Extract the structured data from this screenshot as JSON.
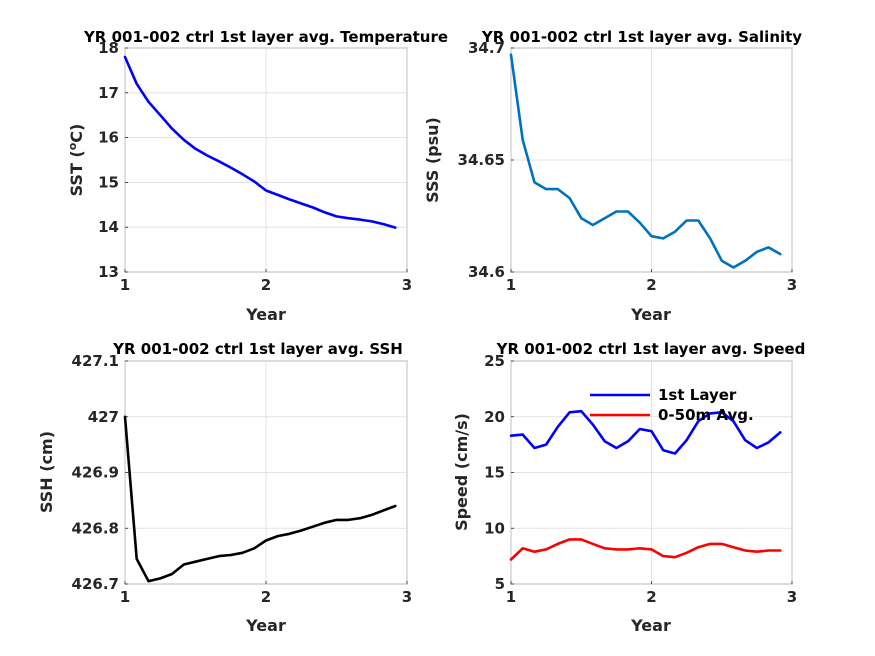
{
  "chart_data": [
    {
      "type": "line",
      "title": "YR 001-002 ctrl 1st layer avg. Temperature",
      "xlabel": "Year",
      "ylabel": "SST (",
      "ylabel_sup": "o",
      "ylabel_end": "C)",
      "xlim": [
        1,
        3
      ],
      "ylim": [
        13,
        18
      ],
      "xticks": [
        1,
        2,
        3
      ],
      "yticks": [
        13,
        14,
        15,
        16,
        17,
        18
      ],
      "grid": true,
      "series": [
        {
          "color": "#0000ff",
          "x": [
            1.0,
            1.083,
            1.167,
            1.25,
            1.333,
            1.417,
            1.5,
            1.583,
            1.667,
            1.75,
            1.833,
            1.917,
            2.0,
            2.083,
            2.167,
            2.25,
            2.333,
            2.417,
            2.5,
            2.583,
            2.667,
            2.75,
            2.833,
            2.917
          ],
          "values": [
            17.8,
            17.2,
            16.8,
            16.5,
            16.2,
            15.95,
            15.75,
            15.6,
            15.47,
            15.33,
            15.18,
            15.02,
            14.82,
            14.72,
            14.62,
            14.53,
            14.44,
            14.33,
            14.24,
            14.2,
            14.17,
            14.13,
            14.07,
            13.99
          ]
        }
      ]
    },
    {
      "type": "line",
      "title": "YR 001-002 ctrl 1st layer avg. Salinity",
      "xlabel": "Year",
      "ylabel": "SSS (psu)",
      "xlim": [
        1,
        3
      ],
      "ylim": [
        34.6,
        34.7
      ],
      "xticks": [
        1,
        2,
        3
      ],
      "yticks": [
        34.6,
        34.65,
        34.7
      ],
      "grid": true,
      "series": [
        {
          "color": "#0072bd",
          "x": [
            1.0,
            1.083,
            1.167,
            1.25,
            1.333,
            1.417,
            1.5,
            1.583,
            1.667,
            1.75,
            1.833,
            1.917,
            2.0,
            2.083,
            2.167,
            2.25,
            2.333,
            2.417,
            2.5,
            2.583,
            2.667,
            2.75,
            2.833,
            2.917
          ],
          "values": [
            34.697,
            34.659,
            34.64,
            34.637,
            34.637,
            34.633,
            34.624,
            34.621,
            34.624,
            34.627,
            34.627,
            34.622,
            34.616,
            34.615,
            34.618,
            34.623,
            34.623,
            34.615,
            34.605,
            34.602,
            34.605,
            34.609,
            34.611,
            34.608
          ]
        }
      ]
    },
    {
      "type": "line",
      "title": "YR 001-002 ctrl 1st layer avg. SSH",
      "xlabel": "Year",
      "ylabel": "SSH (cm)",
      "xlim": [
        1,
        3
      ],
      "ylim": [
        426.7,
        427.1
      ],
      "xticks": [
        1,
        2,
        3
      ],
      "yticks": [
        426.7,
        426.8,
        426.9,
        427,
        427.1
      ],
      "grid": true,
      "series": [
        {
          "color": "#000000",
          "x": [
            1.0,
            1.083,
            1.167,
            1.25,
            1.333,
            1.417,
            1.5,
            1.583,
            1.667,
            1.75,
            1.833,
            1.917,
            2.0,
            2.083,
            2.167,
            2.25,
            2.333,
            2.417,
            2.5,
            2.583,
            2.667,
            2.75,
            2.833,
            2.917
          ],
          "values": [
            427.0,
            426.745,
            426.705,
            426.71,
            426.718,
            426.735,
            426.74,
            426.745,
            426.75,
            426.752,
            426.756,
            426.764,
            426.778,
            426.786,
            426.79,
            426.796,
            426.803,
            426.81,
            426.815,
            426.815,
            426.818,
            426.824,
            426.832,
            426.84
          ]
        }
      ]
    },
    {
      "type": "line",
      "title": "YR 001-002 ctrl 1st layer avg. Speed",
      "xlabel": "Year",
      "ylabel": "Speed (cm/s)",
      "xlim": [
        1,
        3
      ],
      "ylim": [
        5,
        25
      ],
      "xticks": [
        1,
        2,
        3
      ],
      "yticks": [
        5,
        10,
        15,
        20,
        25
      ],
      "grid": true,
      "legend": {
        "placement": "top-right",
        "entries": [
          "1st Layer",
          "0-50m Avg."
        ]
      },
      "series": [
        {
          "name": "1st Layer",
          "color": "#0000ff",
          "x": [
            1.0,
            1.083,
            1.167,
            1.25,
            1.333,
            1.417,
            1.5,
            1.583,
            1.667,
            1.75,
            1.833,
            1.917,
            2.0,
            2.083,
            2.167,
            2.25,
            2.333,
            2.417,
            2.5,
            2.583,
            2.667,
            2.75,
            2.833,
            2.917
          ],
          "values": [
            18.3,
            18.4,
            17.2,
            17.5,
            19.1,
            20.4,
            20.5,
            19.3,
            17.8,
            17.2,
            17.8,
            18.9,
            18.7,
            17.0,
            16.7,
            17.9,
            19.6,
            20.3,
            20.4,
            19.6,
            17.9,
            17.2,
            17.7,
            18.6
          ]
        },
        {
          "name": "0-50m Avg.",
          "color": "#ff0000",
          "x": [
            1.0,
            1.083,
            1.167,
            1.25,
            1.333,
            1.417,
            1.5,
            1.583,
            1.667,
            1.75,
            1.833,
            1.917,
            2.0,
            2.083,
            2.167,
            2.25,
            2.333,
            2.417,
            2.5,
            2.583,
            2.667,
            2.75,
            2.833,
            2.917
          ],
          "values": [
            7.2,
            8.2,
            7.9,
            8.1,
            8.6,
            9.0,
            9.0,
            8.6,
            8.2,
            8.1,
            8.1,
            8.2,
            8.1,
            7.5,
            7.4,
            7.8,
            8.3,
            8.6,
            8.6,
            8.3,
            8.0,
            7.9,
            8.0,
            8.0
          ]
        }
      ]
    }
  ]
}
